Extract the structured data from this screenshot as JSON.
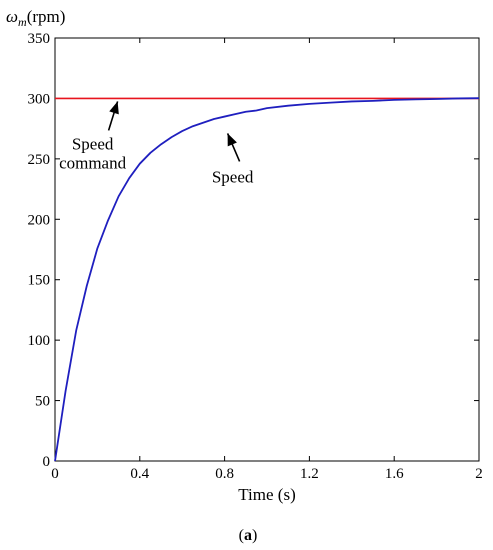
{
  "chart_data": {
    "type": "line",
    "title": "",
    "xlabel": "Time (s)",
    "ylabel_symbol": "ω",
    "ylabel_subscript": "m",
    "ylabel_unit": "(rpm)",
    "caption_open": "(",
    "caption_letter": "a",
    "caption_close": ")",
    "xlim": [
      0,
      2
    ],
    "ylim": [
      0,
      350
    ],
    "xticks": [
      0,
      0.4,
      0.8,
      1.2,
      1.6,
      2
    ],
    "xtick_labels": [
      "0",
      "0.4",
      "0.8",
      "1.2",
      "1.6",
      "2"
    ],
    "yticks": [
      0,
      50,
      100,
      150,
      200,
      250,
      300,
      350
    ],
    "ytick_labels": [
      "0",
      "50",
      "100",
      "150",
      "200",
      "250",
      "300",
      "350"
    ],
    "grid": false,
    "series": [
      {
        "name": "Speed command",
        "color": "#e8141e",
        "x": [
          0,
          2
        ],
        "y": [
          300,
          300
        ]
      },
      {
        "name": "Speed",
        "color": "#1f1fbf",
        "x": [
          0,
          0.05,
          0.1,
          0.15,
          0.2,
          0.25,
          0.3,
          0.35,
          0.4,
          0.45,
          0.5,
          0.55,
          0.6,
          0.65,
          0.7,
          0.75,
          0.8,
          0.85,
          0.9,
          0.95,
          1.0,
          1.1,
          1.2,
          1.3,
          1.4,
          1.5,
          1.6,
          1.7,
          1.8,
          1.9,
          2.0
        ],
        "y": [
          0,
          58,
          108,
          145,
          176,
          199,
          219,
          234,
          246,
          255,
          262,
          268,
          273,
          277,
          280,
          283,
          285,
          287,
          289,
          290,
          292,
          294,
          295.5,
          296.5,
          297.5,
          298,
          298.8,
          299.2,
          299.5,
          300,
          300.2
        ]
      }
    ],
    "annotations": [
      {
        "lines": [
          "Speed",
          "command"
        ],
        "target_series": "Speed command",
        "target_x": 0.3,
        "target_y": 300
      },
      {
        "lines": [
          "Speed"
        ],
        "target_series": "Speed",
        "target_x": 0.8,
        "target_y": 276
      }
    ]
  }
}
